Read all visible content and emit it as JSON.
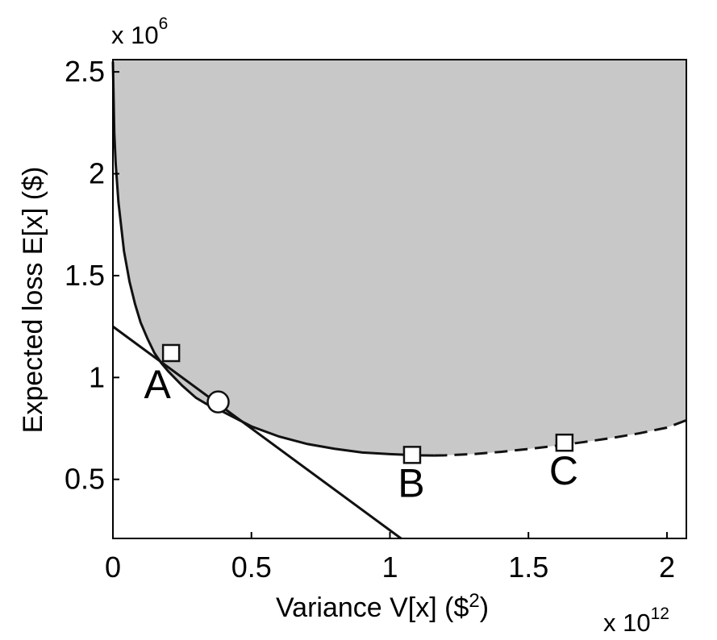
{
  "chart_data": {
    "type": "line",
    "title": "",
    "xlabel": "Variance V[x] ($",
    "xlabel_superscript": "2",
    "xlabel_suffix": ")",
    "ylabel": "Expected loss E[x] ($)",
    "x_multiplier": "x 10",
    "x_multiplier_exponent": "12",
    "y_multiplier": "x 10",
    "y_multiplier_exponent": "6",
    "xlim": [
      0,
      2.07
    ],
    "ylim": [
      0.21,
      2.56
    ],
    "xticks": [
      0,
      0.5,
      1,
      1.5,
      2
    ],
    "xtick_labels": [
      "0",
      "0.5",
      "1",
      "1.5",
      "2"
    ],
    "yticks": [
      0.5,
      1,
      1.5,
      2,
      2.5
    ],
    "ytick_labels": [
      "0.5",
      "1",
      "1.5",
      "2",
      "2.5"
    ],
    "grid": false,
    "colors": {
      "feasible_region": "#c8c8c8",
      "line": "#111111",
      "marker_fill": "#ffffff"
    },
    "series": [
      {
        "style": "solid",
        "x": [
          0.0,
          0.005,
          0.01,
          0.02,
          0.04,
          0.06,
          0.08,
          0.1,
          0.125,
          0.15,
          0.175,
          0.2,
          0.25,
          0.3,
          0.35,
          0.4,
          0.5,
          0.6,
          0.7,
          0.8,
          0.9,
          1.0,
          1.1,
          1.16
        ],
        "y": [
          2.55,
          2.2,
          2.05,
          1.86,
          1.62,
          1.47,
          1.36,
          1.27,
          1.19,
          1.12,
          1.07,
          1.03,
          0.96,
          0.9,
          0.86,
          0.83,
          0.76,
          0.71,
          0.674,
          0.65,
          0.632,
          0.624,
          0.618,
          0.617
        ]
      },
      {
        "style": "dashed",
        "x": [
          1.16,
          1.2,
          1.3,
          1.4,
          1.5,
          1.6,
          1.7,
          1.8,
          1.9,
          2.0,
          2.07
        ],
        "y": [
          0.617,
          0.618,
          0.624,
          0.635,
          0.649,
          0.665,
          0.683,
          0.703,
          0.726,
          0.754,
          0.79
        ]
      },
      {
        "style": "tangent",
        "x": [
          0.0,
          1.04
        ],
        "y": [
          1.25,
          0.21
        ]
      }
    ],
    "points": [
      {
        "label": "A",
        "marker": "square",
        "x": 0.21,
        "y": 1.12
      },
      {
        "label": "",
        "marker": "circle",
        "x": 0.38,
        "y": 0.88
      },
      {
        "label": "B",
        "marker": "square",
        "x": 1.08,
        "y": 0.62
      },
      {
        "label": "C",
        "marker": "square",
        "x": 1.63,
        "y": 0.68
      }
    ]
  }
}
